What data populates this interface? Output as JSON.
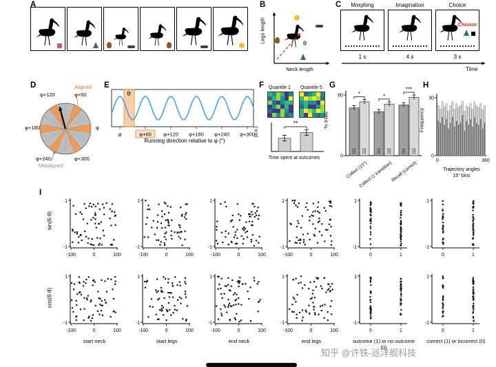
{
  "watermark": "知乎 @许铁-巡洋舰科技",
  "panels": {
    "A": {
      "label": "A",
      "boxes": [
        {
          "bird_scale": 0.92,
          "icons": [
            "gift"
          ]
        },
        {
          "bird_scale": 0.85,
          "icons": [
            "tree"
          ]
        },
        {
          "bird_scale": 0.6,
          "icons": [
            "gingerbread",
            "sled"
          ]
        },
        {
          "bird_scale": 0.72,
          "icons": [
            "gingerbread"
          ]
        },
        {
          "bird_scale": 0.95,
          "icons": [
            "sled"
          ]
        },
        {
          "bird_scale": 1.0,
          "icons": [
            "chick"
          ]
        }
      ]
    },
    "B": {
      "label": "B",
      "xlabel": "Neck length",
      "ylabel": "Legs length",
      "theta": "θ",
      "icons": [
        "chick",
        "sled",
        "gingerbread",
        "tree"
      ]
    },
    "C": {
      "label": "C",
      "steps": [
        {
          "title": "Morphing",
          "duration": "1 s"
        },
        {
          "title": "Imagination",
          "duration": "4 s"
        },
        {
          "title": "Choice",
          "duration": "3 s"
        }
      ],
      "choose_label": "Choose",
      "choice_options": [
        "tree",
        "black"
      ],
      "time_label": "Time"
    },
    "D": {
      "label": "D",
      "theta": "θ",
      "aligned_label": "Aligned",
      "misaligned_label": "Misaligned",
      "dir_labels": [
        "φ",
        "φ+60",
        "φ+120",
        "φ+180",
        "φ+240",
        "φ+300"
      ],
      "aligned_color": "#ef9b57",
      "misaligned_color": "#bdbdbd"
    },
    "E": {
      "label": "E",
      "theta": "θ",
      "xlabel": "Running direction relative to φ (°)",
      "xticks": [
        "φ",
        "φ+60",
        "φ+120",
        "φ+180",
        "φ+240",
        "φ+300"
      ],
      "line_color": "#4f9fd8",
      "band_color": "#f5a860"
    },
    "F": {
      "label": "F",
      "maps": [
        "Quantile 1",
        "Quantile 5"
      ],
      "ylabel": "(a.u.)",
      "xlabel": "Time spent at outcomes",
      "sig": "**"
    },
    "G": {
      "label": "G",
      "ylabel": "% trials"
    },
    "H": {
      "label": "H",
      "ylabel": "Frequency",
      "xlabel_line1": "Trajectory angles",
      "xlabel_line2": "15° bins"
    },
    "I": {
      "label": "I"
    }
  },
  "chart_data": [
    {
      "id": "panelE",
      "type": "line",
      "xlabel": "Running direction relative to φ (°)",
      "xticks": [
        "φ",
        "φ+60",
        "φ+120",
        "φ+180",
        "φ+240",
        "φ+300"
      ],
      "cycles_per_60deg": 1,
      "note": "hexadirectional sinusoidal modulation of signal vs running direction; orange band marks aligned direction θ; φ+60 tick highlighted"
    },
    {
      "id": "panelF_bars",
      "type": "bar",
      "categories": [
        "Quantile 1",
        "Quantile 5"
      ],
      "values": [
        0.42,
        0.6
      ],
      "errors": [
        0.09,
        0.09
      ],
      "ylabel": "(a.u.)",
      "xlabel": "Time spent at outcomes",
      "sig": "**"
    },
    {
      "id": "panelF_heatmaps",
      "type": "heatmap",
      "titles": [
        "Quantile 1",
        "Quantile 5"
      ],
      "grid": [
        6,
        6
      ],
      "palette": [
        "#3b3a8f",
        "#31688e",
        "#21918c",
        "#35b779",
        "#90d743",
        "#fde725"
      ]
    },
    {
      "id": "panelG",
      "type": "bar",
      "categories": [
        "Collect (15°)",
        "Collect (1 transition)",
        "Recall (correct)"
      ],
      "series": [
        {
          "name": "D1",
          "values": [
            63,
            58,
            67
          ]
        },
        {
          "name": "D2",
          "values": [
            71,
            68,
            77
          ]
        }
      ],
      "errors": [
        3,
        3,
        3
      ],
      "ylabel": "% trials",
      "ylim": [
        0,
        80
      ],
      "yticks": [
        0,
        80
      ],
      "sig": [
        "*",
        "*",
        "***"
      ]
    },
    {
      "id": "panelH",
      "type": "histogram",
      "xlabel": "Trajectory angles 15° bins",
      "ylabel": "Frequency",
      "ylim": [
        0,
        30
      ],
      "yticks": [
        0,
        30
      ],
      "xlim": [
        0,
        360
      ],
      "xticks": [
        0,
        360
      ],
      "bin_deg": 15,
      "values_light": [
        26,
        24,
        28,
        25,
        27,
        23,
        26,
        28,
        24,
        27,
        25,
        26,
        28,
        23,
        26,
        25,
        27,
        24,
        28,
        26,
        25,
        27,
        24,
        26
      ],
      "values_dark": [
        18,
        17,
        20,
        16,
        19,
        14,
        17,
        20,
        15,
        18,
        16,
        17,
        21,
        13,
        18,
        16,
        19,
        15,
        20,
        17,
        16,
        19,
        14,
        17
      ]
    },
    {
      "id": "panelI",
      "type": "scatter",
      "ylim": [
        -1,
        1
      ],
      "yticks": [
        "1",
        "-1"
      ],
      "row_labels": [
        "sin(6·θ)",
        "cos(6·θ)"
      ],
      "columns": [
        {
          "label": "start neck",
          "xticks": [
            "-100",
            "0",
            "100"
          ],
          "binary": false
        },
        {
          "label": "start legs",
          "xticks": [
            "-100",
            "0",
            "100"
          ],
          "binary": false
        },
        {
          "label": "end neck",
          "xticks": [
            "-100",
            "0",
            "100"
          ],
          "binary": false
        },
        {
          "label": "end legs",
          "xticks": [
            "-100",
            "0",
            "100"
          ],
          "binary": false
        },
        {
          "label": "outcome (1) or no outcome (0)",
          "xticks": [
            "0",
            "1"
          ],
          "binary": true
        },
        {
          "label": "correct (1) or incorrect (0)",
          "xticks": [
            "0",
            "1"
          ],
          "binary": true
        }
      ],
      "points_per_plot": 70
    }
  ]
}
